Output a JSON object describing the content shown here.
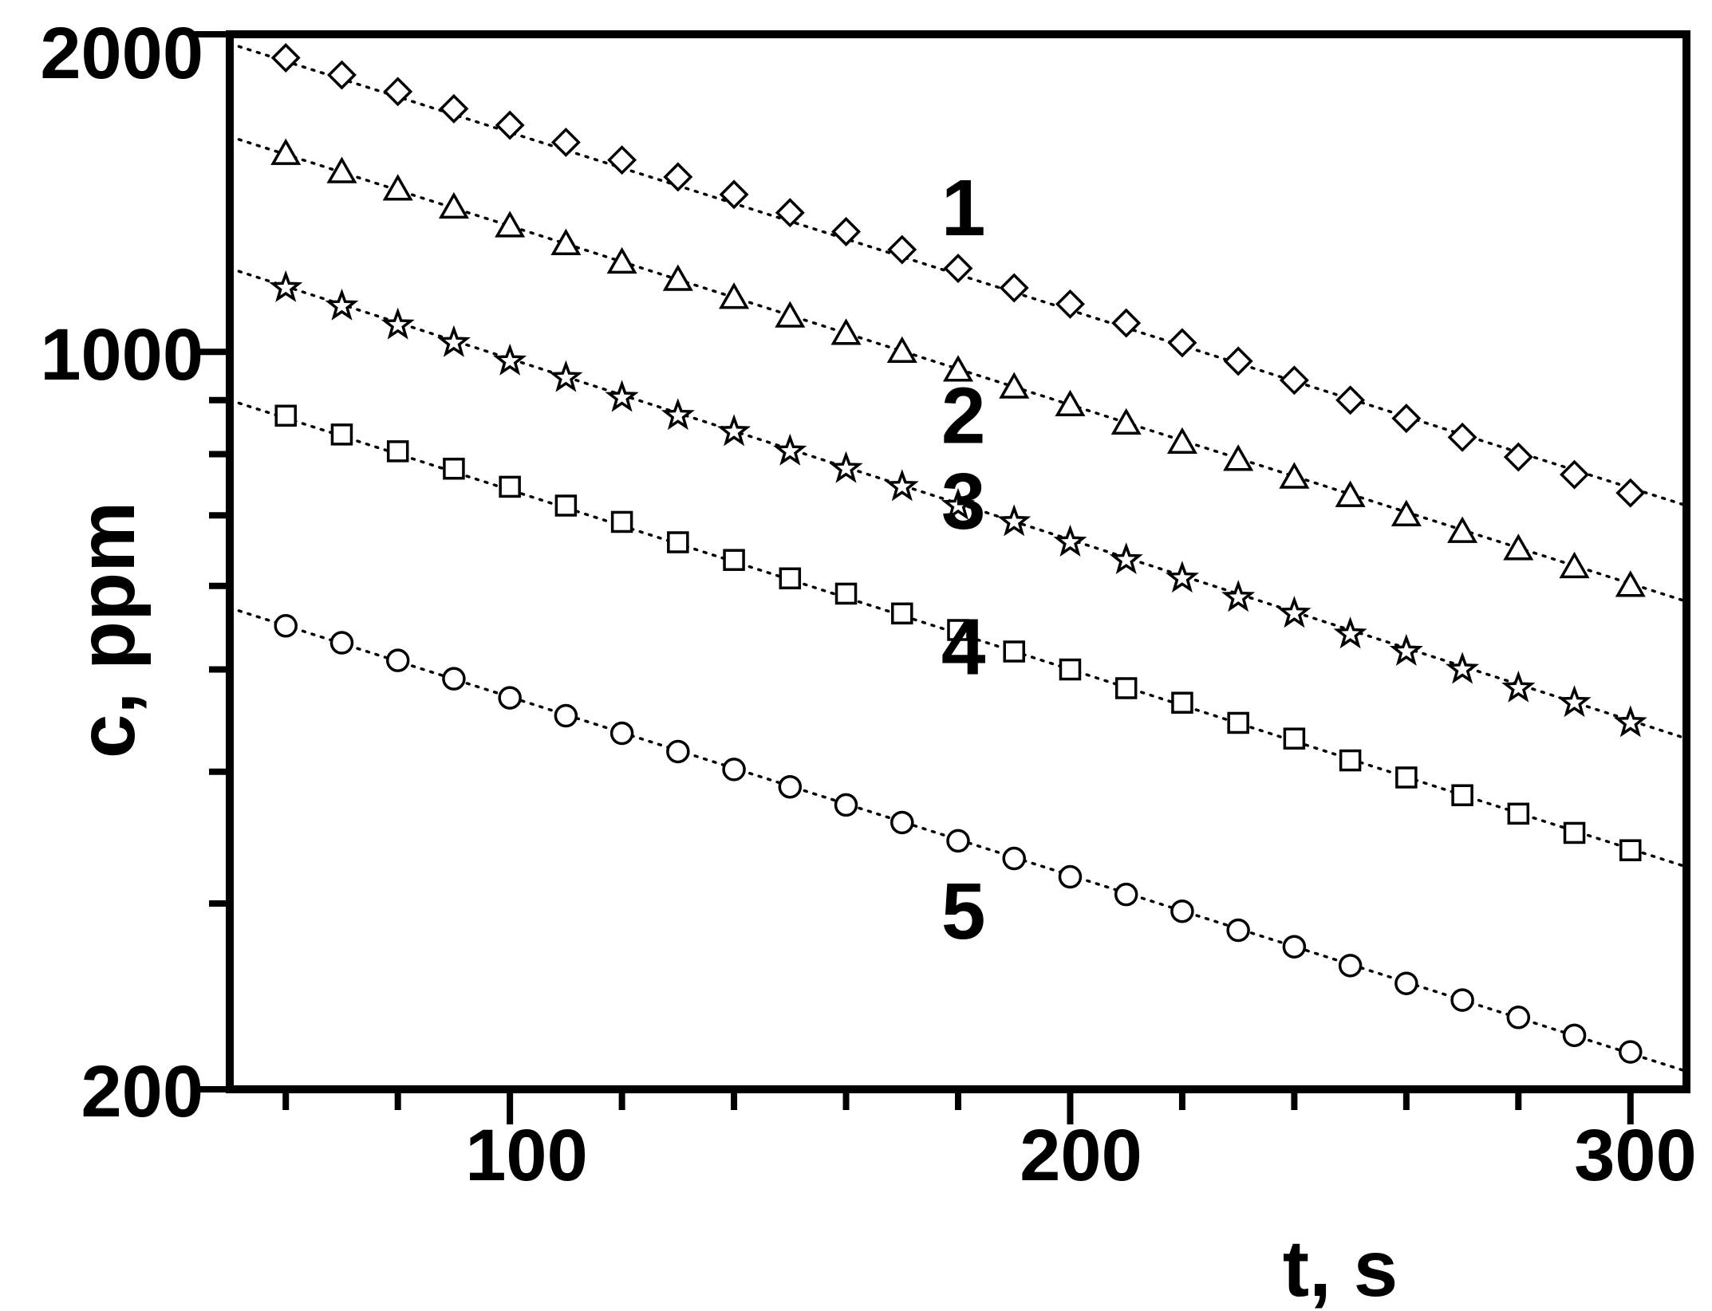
{
  "chart_data": {
    "type": "scatter",
    "title": "",
    "xlabel": "t, s",
    "ylabel": "c, ppm",
    "xlim": [
      50,
      310
    ],
    "ylim": [
      200,
      2000
    ],
    "yscale": "log",
    "grid": false,
    "legend": "none",
    "x_ticks": [
      "100",
      "200",
      "300"
    ],
    "y_ticks": [
      "200",
      "1000",
      "2000"
    ],
    "x": [
      60,
      70,
      80,
      90,
      100,
      110,
      120,
      130,
      140,
      150,
      160,
      170,
      180,
      190,
      200,
      210,
      220,
      230,
      240,
      250,
      260,
      270,
      280,
      290,
      300
    ],
    "series": [
      {
        "name": "1",
        "marker": "diamond",
        "values": [
          1900,
          1830,
          1765,
          1700,
          1640,
          1580,
          1520,
          1465,
          1410,
          1355,
          1300,
          1250,
          1200,
          1150,
          1110,
          1065,
          1020,
          980,
          940,
          900,
          865,
          830,
          795,
          765,
          735
        ],
        "fit": {
          "x": [
            50,
            310
          ],
          "y": [
            1960,
            715
          ]
        }
      },
      {
        "name": "2",
        "marker": "triangle",
        "values": [
          1540,
          1480,
          1425,
          1370,
          1315,
          1265,
          1215,
          1170,
          1125,
          1080,
          1040,
          1000,
          960,
          925,
          890,
          855,
          820,
          790,
          760,
          730,
          700,
          675,
          650,
          625,
          600
        ],
        "fit": {
          "x": [
            50,
            310
          ],
          "y": [
            1600,
            580
          ]
        }
      },
      {
        "name": "3",
        "marker": "star",
        "values": [
          1150,
          1105,
          1060,
          1020,
          980,
          945,
          905,
          870,
          840,
          805,
          775,
          745,
          715,
          690,
          660,
          635,
          610,
          585,
          565,
          540,
          520,
          500,
          480,
          465,
          445
        ],
        "fit": {
          "x": [
            50,
            310
          ],
          "y": [
            1200,
            430
          ]
        }
      },
      {
        "name": "4",
        "marker": "square",
        "values": [
          870,
          835,
          805,
          775,
          745,
          715,
          690,
          660,
          635,
          610,
          590,
          565,
          545,
          520,
          500,
          480,
          465,
          445,
          430,
          410,
          395,
          380,
          365,
          350,
          337
        ],
        "fit": {
          "x": [
            50,
            310
          ],
          "y": [
            900,
            325
          ]
        }
      },
      {
        "name": "5",
        "marker": "circle",
        "values": [
          550,
          530,
          510,
          490,
          470,
          452,
          435,
          418,
          402,
          387,
          372,
          358,
          344,
          331,
          318,
          306,
          295,
          283,
          273,
          262,
          252,
          243,
          234,
          225,
          217
        ],
        "fit": {
          "x": [
            50,
            310
          ],
          "y": [
            572,
            208
          ]
        }
      }
    ],
    "curve_labels": [
      {
        "text": "1",
        "x": 177,
        "y": 1290
      },
      {
        "text": "2",
        "x": 177,
        "y": 820
      },
      {
        "text": "3",
        "x": 177,
        "y": 680
      },
      {
        "text": "4",
        "x": 177,
        "y": 495
      },
      {
        "text": "5",
        "x": 177,
        "y": 278
      }
    ]
  }
}
